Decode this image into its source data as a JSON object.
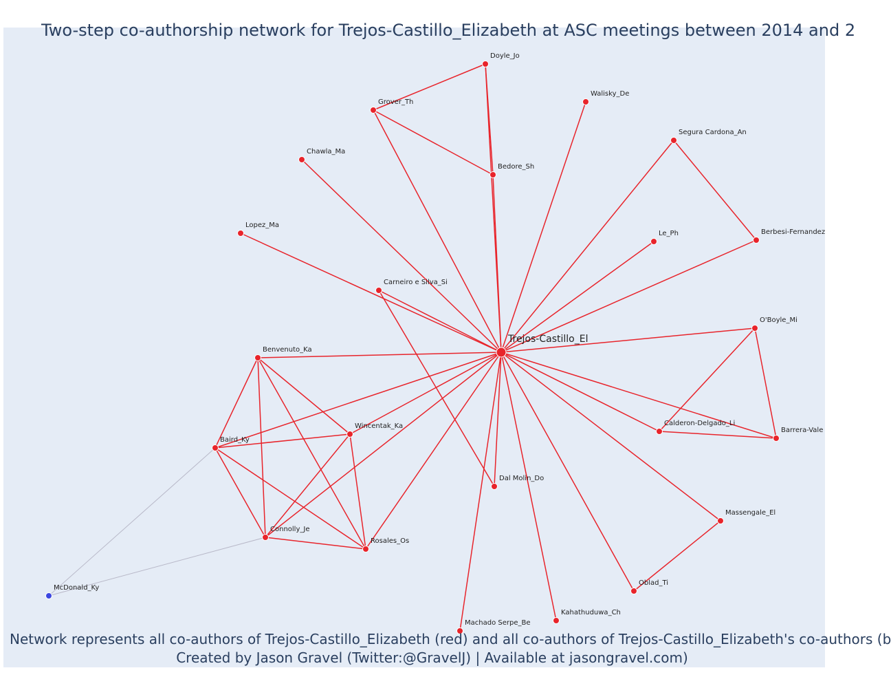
{
  "title": "Two-step co-authorship network for Trejos-Castillo_Elizabeth at ASC meetings between 2014 and 2",
  "footer": {
    "line1": "Network represents all co-authors of Trejos-Castillo_Elizabeth (red) and all co-authors of Trejos-Castillo_Elizabeth's co-authors (b",
    "line2": "Created by Jason Gravel (Twitter:@GravelJ) | Available at jasongravel.com)"
  },
  "colors": {
    "plot_bg": "#e5ecf6",
    "red_node": "#e8242b",
    "blue_node": "#3b46e0",
    "red_edge": "#e8242b",
    "grey_edge": "#b8b8c8"
  },
  "network": {
    "center": "Trejos-Castillo_El",
    "nodes": [
      {
        "id": "Trejos-Castillo_El",
        "group": "center"
      },
      {
        "id": "Doyle_Jo",
        "group": "red"
      },
      {
        "id": "Grover_Th",
        "group": "red"
      },
      {
        "id": "Walisky_De",
        "group": "red"
      },
      {
        "id": "Segura Cardona_An",
        "group": "red"
      },
      {
        "id": "Chawla_Ma",
        "group": "red"
      },
      {
        "id": "Bedore_Sh",
        "group": "red"
      },
      {
        "id": "Lopez_Ma",
        "group": "red"
      },
      {
        "id": "Le_Ph",
        "group": "red"
      },
      {
        "id": "Berbesi-Fernandez",
        "group": "red"
      },
      {
        "id": "Carneiro e Silva_Si",
        "group": "red"
      },
      {
        "id": "O'Boyle_Mi",
        "group": "red"
      },
      {
        "id": "Benvenuto_Ka",
        "group": "red"
      },
      {
        "id": "Wincentak_Ka",
        "group": "red"
      },
      {
        "id": "Calderon-Delgado_Li",
        "group": "red"
      },
      {
        "id": "Barrera-Vale",
        "group": "red"
      },
      {
        "id": "Baird_Ky",
        "group": "red"
      },
      {
        "id": "Dal Molin_Do",
        "group": "red"
      },
      {
        "id": "Massengale_El",
        "group": "red"
      },
      {
        "id": "Connolly_Je",
        "group": "red"
      },
      {
        "id": "Rosales_Os",
        "group": "red"
      },
      {
        "id": "McDonald_Ky",
        "group": "blue"
      },
      {
        "id": "Oblad_Ti",
        "group": "red"
      },
      {
        "id": "Kahathuduwa_Ch",
        "group": "red"
      },
      {
        "id": "Machado Serpe_Be",
        "group": "red"
      }
    ],
    "edges": [
      [
        "Trejos-Castillo_El",
        "Doyle_Jo"
      ],
      [
        "Trejos-Castillo_El",
        "Grover_Th"
      ],
      [
        "Trejos-Castillo_El",
        "Walisky_De"
      ],
      [
        "Trejos-Castillo_El",
        "Segura Cardona_An"
      ],
      [
        "Trejos-Castillo_El",
        "Chawla_Ma"
      ],
      [
        "Trejos-Castillo_El",
        "Bedore_Sh"
      ],
      [
        "Trejos-Castillo_El",
        "Lopez_Ma"
      ],
      [
        "Trejos-Castillo_El",
        "Le_Ph"
      ],
      [
        "Trejos-Castillo_El",
        "Berbesi-Fernandez"
      ],
      [
        "Trejos-Castillo_El",
        "Carneiro e Silva_Si"
      ],
      [
        "Trejos-Castillo_El",
        "O'Boyle_Mi"
      ],
      [
        "Trejos-Castillo_El",
        "Benvenuto_Ka"
      ],
      [
        "Trejos-Castillo_El",
        "Wincentak_Ka"
      ],
      [
        "Trejos-Castillo_El",
        "Calderon-Delgado_Li"
      ],
      [
        "Trejos-Castillo_El",
        "Barrera-Vale"
      ],
      [
        "Trejos-Castillo_El",
        "Baird_Ky"
      ],
      [
        "Trejos-Castillo_El",
        "Dal Molin_Do"
      ],
      [
        "Trejos-Castillo_El",
        "Massengale_El"
      ],
      [
        "Trejos-Castillo_El",
        "Connolly_Je"
      ],
      [
        "Trejos-Castillo_El",
        "Rosales_Os"
      ],
      [
        "Trejos-Castillo_El",
        "Oblad_Ti"
      ],
      [
        "Trejos-Castillo_El",
        "Kahathuduwa_Ch"
      ],
      [
        "Trejos-Castillo_El",
        "Machado Serpe_Be"
      ],
      [
        "Doyle_Jo",
        "Grover_Th"
      ],
      [
        "Doyle_Jo",
        "Bedore_Sh"
      ],
      [
        "Grover_Th",
        "Bedore_Sh"
      ],
      [
        "Segura Cardona_An",
        "Berbesi-Fernandez"
      ],
      [
        "Carneiro e Silva_Si",
        "Dal Molin_Do"
      ],
      [
        "O'Boyle_Mi",
        "Calderon-Delgado_Li"
      ],
      [
        "O'Boyle_Mi",
        "Barrera-Vale"
      ],
      [
        "Calderon-Delgado_Li",
        "Barrera-Vale"
      ],
      [
        "Massengale_El",
        "Oblad_Ti"
      ],
      [
        "Benvenuto_Ka",
        "Baird_Ky"
      ],
      [
        "Benvenuto_Ka",
        "Wincentak_Ka"
      ],
      [
        "Benvenuto_Ka",
        "Connolly_Je"
      ],
      [
        "Benvenuto_Ka",
        "Rosales_Os"
      ],
      [
        "Baird_Ky",
        "Wincentak_Ka"
      ],
      [
        "Baird_Ky",
        "Connolly_Je"
      ],
      [
        "Baird_Ky",
        "Rosales_Os"
      ],
      [
        "Wincentak_Ka",
        "Connolly_Je"
      ],
      [
        "Wincentak_Ka",
        "Rosales_Os"
      ],
      [
        "Connolly_Je",
        "Rosales_Os"
      ],
      [
        "Baird_Ky",
        "McDonald_Ky"
      ],
      [
        "Connolly_Je",
        "McDonald_Ky"
      ]
    ]
  }
}
